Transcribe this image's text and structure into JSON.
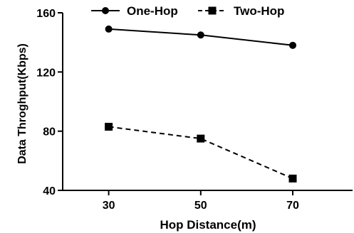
{
  "chart_data": {
    "type": "line",
    "x": [
      30,
      50,
      70
    ],
    "xticks": [
      "30",
      "50",
      "70"
    ],
    "yticks": [
      "40",
      "80",
      "120",
      "160"
    ],
    "xlim": [
      20,
      83
    ],
    "ylim": [
      40,
      160
    ],
    "xlabel": "Hop Distance(m)",
    "ylabel": "Data Throghput(Kbps)",
    "grid": false,
    "legend_position": "top-center",
    "series": [
      {
        "name": "One-Hop",
        "values": [
          149,
          145,
          138
        ],
        "marker": "circle",
        "line": "solid",
        "color": "#000000"
      },
      {
        "name": "Two-Hop",
        "values": [
          83,
          75,
          48
        ],
        "marker": "square",
        "line": "dashed",
        "color": "#000000"
      }
    ]
  }
}
